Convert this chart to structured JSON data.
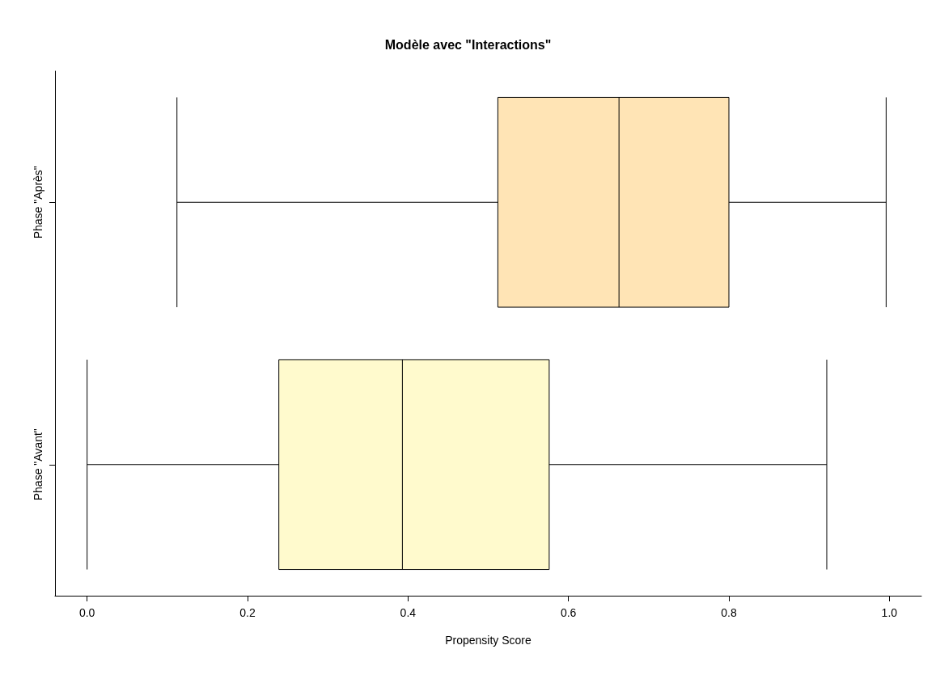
{
  "chart_data": {
    "type": "box",
    "title": "Modèle avec \"Interactions\"",
    "xlabel": "Propensity Score",
    "orientation": "horizontal",
    "categories": [
      "Phase \"Après\"",
      "Phase \"Avant\""
    ],
    "colors": [
      "#ffe4b5",
      "#fffacd"
    ],
    "boxes": [
      {
        "low": 0.112,
        "q1": 0.512,
        "median": 0.663,
        "q3": 0.8,
        "high": 0.996
      },
      {
        "low": 0.0,
        "q1": 0.239,
        "median": 0.393,
        "q3": 0.576,
        "high": 0.922
      }
    ],
    "xlim": [
      -0.04,
      1.04
    ],
    "xticks": [
      {
        "value": 0,
        "label": "0.0"
      },
      0.2,
      0.4,
      0.6,
      0.8,
      {
        "value": 1,
        "label": "1.0"
      }
    ],
    "grid": false
  }
}
